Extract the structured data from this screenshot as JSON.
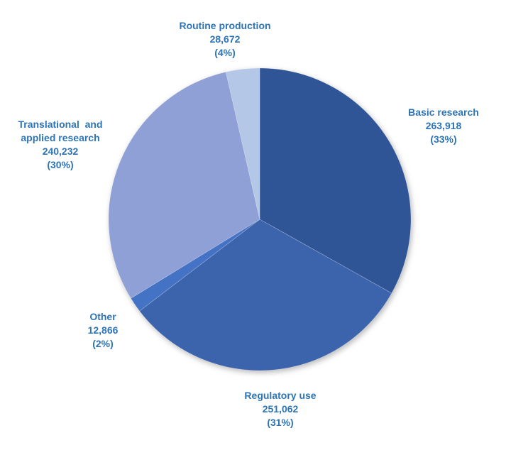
{
  "colors": {
    "background": "#FFFFFF",
    "label_text": "#2E74B5"
  },
  "chart_data": {
    "type": "pie",
    "title": "",
    "legend": "none",
    "start_angle_deg": 0,
    "direction": "clockwise",
    "slices": [
      {
        "id": "basic-research",
        "name_lines": [
          "Basic research"
        ],
        "value": 263918,
        "value_display": "263,918",
        "pct": 33,
        "pct_display": "(33%)",
        "color": "#2F5597"
      },
      {
        "id": "regulatory-use",
        "name_lines": [
          "Regulatory use"
        ],
        "value": 251062,
        "value_display": "251,062",
        "pct": 31,
        "pct_display": "(31%)",
        "color": "#3C64AC"
      },
      {
        "id": "other",
        "name_lines": [
          "Other"
        ],
        "value": 12866,
        "value_display": "12,866",
        "pct": 2,
        "pct_display": "(2%)",
        "color": "#4472C4"
      },
      {
        "id": "translational-and-applied-research",
        "name_lines": [
          "Translational  and",
          "applied research"
        ],
        "value": 240232,
        "value_display": "240,232",
        "pct": 30,
        "pct_display": "(30%)",
        "color": "#8EA0D5"
      },
      {
        "id": "routine-production",
        "name_lines": [
          "Routine production"
        ],
        "value": 28672,
        "value_display": "28,672",
        "pct": 4,
        "pct_display": "(4%)",
        "color": "#B4C7E7"
      }
    ]
  }
}
